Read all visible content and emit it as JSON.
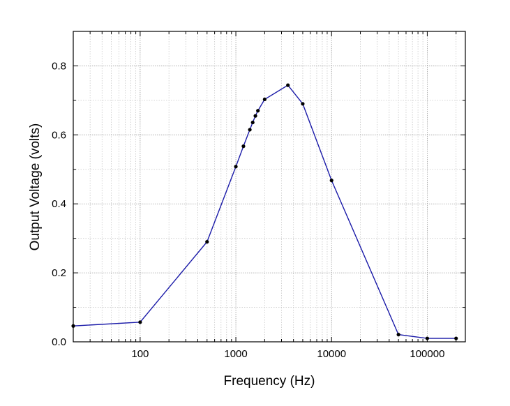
{
  "chart_data": {
    "type": "line",
    "title": "",
    "xlabel": "Frequency (Hz)",
    "ylabel": "Output Voltage (volts)",
    "xscale": "log",
    "xlim": [
      20,
      250000
    ],
    "ylim": [
      0,
      0.9
    ],
    "grid": true,
    "legend": "none",
    "line_color": "#1a1aa8",
    "marker_color": "#000000",
    "x_ticks": [
      {
        "value": 100,
        "label": "100"
      },
      {
        "value": 1000,
        "label": "1000"
      },
      {
        "value": 10000,
        "label": "10000"
      },
      {
        "value": 100000,
        "label": "100000"
      }
    ],
    "y_ticks": [
      {
        "value": 0,
        "label": "0.0"
      },
      {
        "value": 0.2,
        "label": "0.2"
      },
      {
        "value": 0.4,
        "label": "0.4"
      },
      {
        "value": 0.6,
        "label": "0.6"
      },
      {
        "value": 0.8,
        "label": "0.8"
      }
    ],
    "series": [
      {
        "x": [
          20,
          100,
          500,
          1000,
          1200,
          1400,
          1500,
          1600,
          1700,
          2000,
          3500,
          5000,
          10000,
          50000,
          100000,
          200000
        ],
        "y": [
          0.046,
          0.057,
          0.29,
          0.508,
          0.567,
          0.615,
          0.636,
          0.655,
          0.67,
          0.703,
          0.744,
          0.69,
          0.468,
          0.021,
          0.01,
          0.01
        ]
      }
    ]
  }
}
